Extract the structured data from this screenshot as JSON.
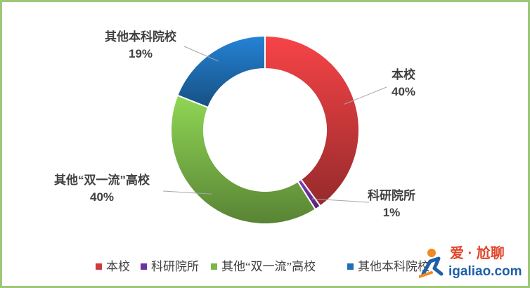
{
  "chart_data": {
    "type": "pie",
    "donut": true,
    "title": "",
    "categories": [
      "本校",
      "科研院所",
      "其他“双一流”高校",
      "其他本科院校"
    ],
    "values": [
      40,
      1,
      40,
      19
    ],
    "value_labels": [
      "40%",
      "1%",
      "40%",
      "19%"
    ],
    "colors": [
      "#d13a3c",
      "#7030a0",
      "#7ab648",
      "#1f6fb5"
    ],
    "legend": {
      "position": "bottom",
      "entries": [
        "本校",
        "科研院所",
        "其他“双一流”高校",
        "其他本科院校"
      ]
    }
  },
  "watermark": {
    "line1": "爱 · 尬聊",
    "line2": "igaliao.com",
    "icon": "running-figure-icon"
  }
}
